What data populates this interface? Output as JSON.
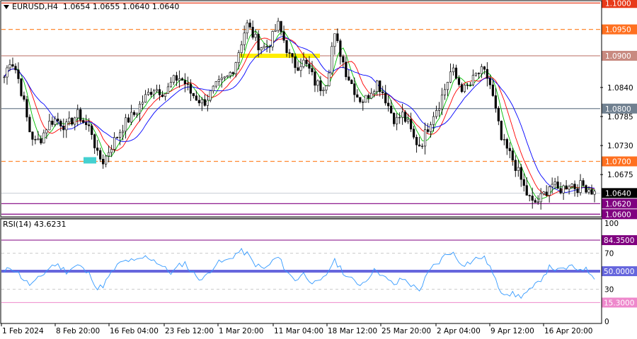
{
  "header": {
    "symbol": "EURUSD,H4",
    "ohlc": "1.0654 1.0655 1.0640 1.0640"
  },
  "colors": {
    "candle": "#000000",
    "ma_fast": "#00c000",
    "ma_mid": "#ff0000",
    "ma_slow": "#0000ff",
    "resistance": "#ff8a33",
    "current": "#708090",
    "support": "#800080",
    "highlight_yellow": "#ffee00",
    "highlight_cyan": "#44d0d0",
    "rsi_line": "#3399ff",
    "rsi_mid": "#6666dd",
    "rsi_high": "#800080",
    "rsi_low": "#ee88cc",
    "tag_red": "#e83a1a",
    "tag_orange": "#ff7020",
    "tag_salmon": "#c88a80",
    "tag_grey": "#708090",
    "tag_black": "#000000",
    "tag_purple": "#800080",
    "tag_pink": "#ee88cc",
    "tag_blue": "#6666dd"
  },
  "chart_data": [
    {
      "type": "candlestick",
      "title": "",
      "ylim": [
        1.0595,
        1.1003
      ],
      "x_tick_labels": [
        "1 Feb 2024",
        "8 Feb 20:00",
        "16 Feb 04:00",
        "23 Feb 12:00",
        "1 Mar 20:00",
        "11 Mar 04:00",
        "18 Mar 12:00",
        "25 Mar 20:00",
        "2 Apr 04:00",
        "9 Apr 12:00",
        "16 Apr 20:00"
      ],
      "y_tick_labels": [
        "1.0840",
        "1.0785",
        "1.0730",
        "1.0675"
      ],
      "y_ticks": [
        1.084,
        1.0785,
        1.073,
        1.0675
      ],
      "levels": [
        {
          "price": 1.1,
          "label": "1.1000",
          "style": "solid",
          "role": "top"
        },
        {
          "price": 1.095,
          "label": "1.0950",
          "style": "dashed",
          "role": "resistance"
        },
        {
          "price": 1.09,
          "label": "1.0900",
          "style": "solid",
          "role": "salmon"
        },
        {
          "price": 1.08,
          "label": "1.0800",
          "style": "solid",
          "role": "grey"
        },
        {
          "price": 1.07,
          "label": "1.0700",
          "style": "dashed",
          "role": "resistance"
        },
        {
          "price": 1.064,
          "label": "1.0640",
          "style": "thin",
          "role": "current"
        },
        {
          "price": 1.062,
          "label": "1.0620",
          "style": "solid",
          "role": "support"
        },
        {
          "price": 1.06,
          "label": "1.0600",
          "style": "solid",
          "role": "support"
        }
      ],
      "series_trend": [
        1.086,
        1.0895,
        1.087,
        1.082,
        1.076,
        1.0735,
        1.0745,
        1.077,
        1.078,
        1.0775,
        1.0765,
        1.078,
        1.079,
        1.077,
        1.076,
        1.071,
        1.07,
        1.0725,
        1.0745,
        1.0765,
        1.078,
        1.079,
        1.081,
        1.0825,
        1.084,
        1.0835,
        1.083,
        1.085,
        1.086,
        1.085,
        1.083,
        1.082,
        1.081,
        1.0825,
        1.084,
        1.085,
        1.086,
        1.088,
        1.092,
        1.096,
        1.094,
        1.092,
        1.0915,
        1.093,
        1.096,
        1.093,
        1.0895,
        1.088,
        1.089,
        1.0875,
        1.085,
        1.084,
        1.0855,
        1.094,
        1.091,
        1.087,
        1.0845,
        1.082,
        1.0815,
        1.0835,
        1.085,
        1.083,
        1.08,
        1.0775,
        1.079,
        1.077,
        1.074,
        1.073,
        1.076,
        1.079,
        1.081,
        1.084,
        1.0875,
        1.085,
        1.0835,
        1.0845,
        1.0865,
        1.087,
        1.0855,
        1.08,
        1.074,
        1.072,
        1.07,
        1.067,
        1.064,
        1.062,
        1.0625,
        1.064,
        1.066,
        1.0645,
        1.065,
        1.066,
        1.065,
        1.0655,
        1.065,
        1.064
      ],
      "annotations": [
        {
          "type": "highlight",
          "color": "yellow",
          "near_price": 1.09
        },
        {
          "type": "highlight",
          "color": "cyan",
          "near_price": 1.07
        }
      ]
    },
    {
      "type": "line",
      "name": "RSI(14)",
      "value_label": "43.6231",
      "ylim": [
        0,
        100
      ],
      "y_tick_labels": [
        "100",
        "70",
        "50",
        "30",
        "0"
      ],
      "y_ticks": [
        100,
        70,
        50,
        30,
        0
      ],
      "levels": [
        {
          "value": 84.35,
          "label": "84.3500"
        },
        {
          "value": 50.0,
          "label": "50.0000"
        },
        {
          "value": 15.3,
          "label": "15.3000"
        }
      ],
      "values": [
        48,
        55,
        50,
        42,
        35,
        38,
        45,
        52,
        58,
        55,
        50,
        54,
        57,
        50,
        45,
        30,
        35,
        45,
        55,
        60,
        62,
        60,
        64,
        66,
        63,
        58,
        52,
        48,
        55,
        60,
        50,
        45,
        40,
        50,
        58,
        60,
        62,
        68,
        72,
        70,
        60,
        55,
        52,
        60,
        66,
        55,
        45,
        40,
        48,
        42,
        36,
        38,
        48,
        62,
        55,
        45,
        40,
        36,
        38,
        48,
        52,
        44,
        38,
        35,
        42,
        38,
        32,
        30,
        45,
        55,
        60,
        68,
        72,
        62,
        58,
        60,
        64,
        66,
        58,
        40,
        28,
        26,
        24,
        22,
        26,
        30,
        38,
        48,
        56,
        50,
        52,
        55,
        52,
        54,
        50,
        44
      ]
    }
  ]
}
